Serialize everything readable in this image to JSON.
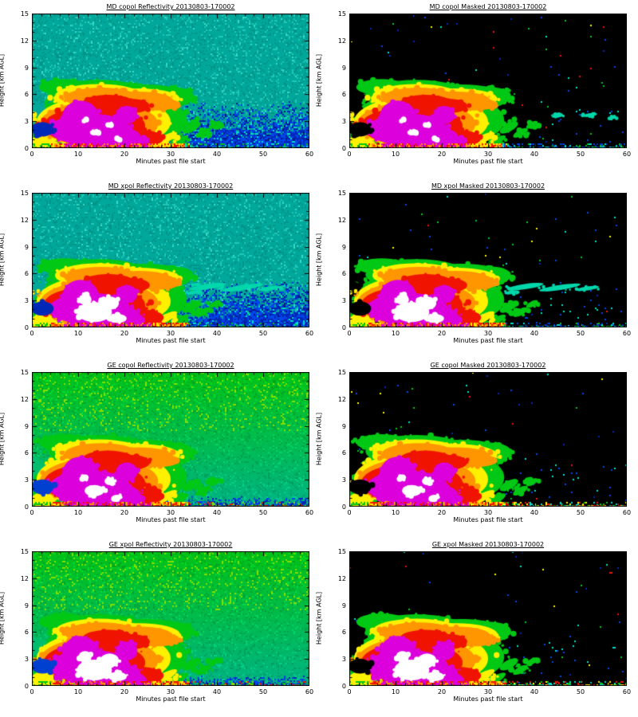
{
  "figure": {
    "grid": "4 rows x 2 columns",
    "xlabel": "Minutes past file start",
    "ylabel": "Height [km AGL]",
    "x_ticks": [
      "0",
      "10",
      "20",
      "30",
      "40",
      "50",
      "60"
    ],
    "y_ticks": [
      "0",
      "3",
      "6",
      "9",
      "12",
      "15"
    ],
    "x_range": [
      0,
      60
    ],
    "y_range": [
      0,
      15
    ]
  },
  "panels": [
    {
      "id": "md-copol-refl",
      "title": "MD copol Reflectivity 20130803-170002",
      "style": "refl",
      "radar": "MD",
      "white": 0.25,
      "seed": 101,
      "streaks": []
    },
    {
      "id": "md-copol-masked",
      "title": "MD copol Masked 20130803-170002",
      "style": "masked",
      "radar": "MD",
      "white": 0.25,
      "seed": 102,
      "streaks": [
        [
          45,
          3.6,
          1.3,
          0.2
        ],
        [
          52,
          3.7,
          1.6,
          0.2
        ],
        [
          57,
          3.4,
          0.9,
          0.16
        ]
      ]
    },
    {
      "id": "md-xpol-refl",
      "title": "MD xpol Reflectivity 20130803-170002",
      "style": "refl",
      "radar": "MD",
      "white": 1,
      "seed": 103,
      "streaks": [
        [
          38,
          4.55,
          4,
          0.3
        ],
        [
          45.5,
          4.45,
          4.5,
          0.28
        ],
        [
          51.5,
          4.35,
          2.5,
          0.22
        ],
        [
          35,
          3.9,
          1.5,
          0.2
        ]
      ]
    },
    {
      "id": "md-xpol-masked",
      "title": "MD xpol Masked 20130803-170002",
      "style": "masked",
      "radar": "MD",
      "white": 1,
      "seed": 104,
      "streaks": [
        [
          38,
          4.55,
          4,
          0.3
        ],
        [
          45.5,
          4.45,
          4.5,
          0.28
        ],
        [
          51.5,
          4.35,
          2.5,
          0.22
        ],
        [
          35,
          3.9,
          1.5,
          0.2
        ]
      ]
    },
    {
      "id": "ge-copol-refl",
      "title": "GE copol Reflectivity 20130803-170002",
      "style": "refl",
      "radar": "GE",
      "white": 0.55,
      "seed": 105,
      "streaks": []
    },
    {
      "id": "ge-copol-masked",
      "title": "GE copol Masked 20130803-170002",
      "style": "masked",
      "radar": "GE",
      "white": 0.55,
      "seed": 106,
      "streaks": []
    },
    {
      "id": "ge-xpol-refl",
      "title": "GE xpol Reflectivity 20130803-170002",
      "style": "refl",
      "radar": "GE",
      "white": 1,
      "seed": 107,
      "streaks": []
    },
    {
      "id": "ge-xpol-masked",
      "title": "GE xpol Masked 20130803-170002",
      "style": "masked",
      "radar": "GE",
      "white": 1,
      "seed": 108,
      "streaks": []
    }
  ],
  "palette": {
    "teal": "#00A89B",
    "teal_dark": "#00958A",
    "teal_light": "#1FC7B6",
    "blue": "#0046E8",
    "blue_deep": "#0028B8",
    "blue_darkest": "#001A86",
    "green_bg_top": "#00C818",
    "green_bg_bottom": "#00B98F",
    "yellow_green": "#86E000",
    "storm_green": "#00C814",
    "storm_yellow": "#FFF000",
    "storm_orange": "#FF9600",
    "storm_red": "#F01400",
    "storm_magenta": "#DC00DC",
    "storm_white": "#FFFFFF",
    "cyan": "#00E0C8",
    "black": "#000000"
  },
  "chart_data": [
    {
      "type": "heatmap",
      "title": "MD copol Reflectivity 20130803-170002",
      "xlabel": "Minutes past file start",
      "ylabel": "Height [km AGL]",
      "x_range": [
        0,
        60
      ],
      "y_range": [
        0,
        15
      ],
      "value_scale": "radar reflectivity, rainbow low-to-high: blue, teal/green, yellow, orange, red, magenta, white",
      "features": {
        "storm_time_min": [
          0,
          35
        ],
        "storm_top_km": 7.5,
        "core_time_min": [
          6,
          25
        ],
        "core_height_km": [
          0,
          5
        ],
        "anvil_time_min": [
          12,
          35
        ],
        "anvil_height_km": [
          4.5,
          6.5
        ],
        "background": "weak teal echo everywhere with clear-air blue wedge in lower right",
        "surface_clutter_km": [
          0,
          0.5
        ]
      }
    },
    {
      "type": "heatmap",
      "title": "MD copol Masked 20130803-170002",
      "xlabel": "Minutes past file start",
      "ylabel": "Height [km AGL]",
      "x_range": [
        0,
        60
      ],
      "y_range": [
        0,
        15
      ],
      "value_scale": "radar reflectivity, rainbow low-to-high: blue, teal/green, yellow, orange, red, magenta, white",
      "features": {
        "storm_time_min": [
          0,
          35
        ],
        "storm_top_km": 7.5,
        "core_time_min": [
          6,
          25
        ],
        "core_height_km": [
          0,
          5
        ],
        "anvil_time_min": [
          12,
          35
        ],
        "anvil_height_km": [
          4.5,
          6.5
        ],
        "background": "black (masked out) with sparse colored speckles; thin speckled clutter line below 0.5 km beyond ~35 min",
        "surface_clutter_km": [
          0,
          0.5
        ]
      }
    },
    {
      "type": "heatmap",
      "title": "MD xpol Reflectivity 20130803-170002",
      "xlabel": "Minutes past file start",
      "ylabel": "Height [km AGL]",
      "x_range": [
        0,
        60
      ],
      "y_range": [
        0,
        15
      ],
      "value_scale": "radar reflectivity, rainbow low-to-high: blue, teal/green, yellow, orange, red, magenta, white",
      "features": {
        "storm_time_min": [
          0,
          35
        ],
        "storm_top_km": 7.5,
        "core_time_min": [
          6,
          25
        ],
        "core_height_km": [
          0,
          5
        ],
        "white_saturation": "large white patches 10-20 min, 0.5-3.5 km",
        "mid_level_streaks": "cyan echo streaks near 4.5 km, 35-52 min",
        "background": "weak teal echo with clear-air blue wedge in lower right",
        "surface_clutter_km": [
          0,
          0.5
        ]
      }
    },
    {
      "type": "heatmap",
      "title": "MD xpol Masked 20130803-170002",
      "xlabel": "Minutes past file start",
      "ylabel": "Height [km AGL]",
      "x_range": [
        0,
        60
      ],
      "y_range": [
        0,
        15
      ],
      "value_scale": "radar reflectivity, rainbow low-to-high: blue, teal/green, yellow, orange, red, magenta, white",
      "features": {
        "storm_time_min": [
          0,
          35
        ],
        "storm_top_km": 7.5,
        "core_time_min": [
          6,
          25
        ],
        "core_height_km": [
          0,
          5
        ],
        "white_saturation": "large white patches 10-20 min, 0.5-3.5 km",
        "mid_level_streaks": "cyan echo streaks near 4.5 km, 35-52 min",
        "background": "black (masked out) with sparse speckles and clutter line beyond ~35 min",
        "surface_clutter_km": [
          0,
          0.5
        ]
      }
    },
    {
      "type": "heatmap",
      "title": "GE copol Reflectivity 20130803-170002",
      "xlabel": "Minutes past file start",
      "ylabel": "Height [km AGL]",
      "x_range": [
        0,
        60
      ],
      "y_range": [
        0,
        15
      ],
      "value_scale": "radar reflectivity, rainbow low-to-high: blue, teal/green, yellow, orange, red, magenta, white",
      "features": {
        "storm_time_min": [
          0,
          35
        ],
        "storm_top_km": 7.5,
        "core_time_min": [
          6,
          25
        ],
        "core_height_km": [
          0,
          5
        ],
        "background": "green weak echo grading to teal toward surface; blue band below ~1 km beyond 25 min",
        "surface_clutter_km": [
          0,
          0.5
        ]
      }
    },
    {
      "type": "heatmap",
      "title": "GE copol Masked 20130803-170002",
      "xlabel": "Minutes past file start",
      "ylabel": "Height [km AGL]",
      "x_range": [
        0,
        60
      ],
      "y_range": [
        0,
        15
      ],
      "value_scale": "radar reflectivity, rainbow low-to-high: blue, teal/green, yellow, orange, red, magenta, white",
      "features": {
        "storm_time_min": [
          0,
          35
        ],
        "storm_top_km": 7.5,
        "core_time_min": [
          6,
          25
        ],
        "core_height_km": [
          0,
          5
        ],
        "background": "black (masked out); green/red speckled clutter line below 0.5 km beyond ~33 min",
        "surface_clutter_km": [
          0,
          0.5
        ]
      }
    },
    {
      "type": "heatmap",
      "title": "GE xpol Reflectivity 20130803-170002",
      "xlabel": "Minutes past file start",
      "ylabel": "Height [km AGL]",
      "x_range": [
        0,
        60
      ],
      "y_range": [
        0,
        15
      ],
      "value_scale": "radar reflectivity, rainbow low-to-high: blue, teal/green, yellow, orange, red, magenta, white",
      "features": {
        "storm_time_min": [
          0,
          35
        ],
        "storm_top_km": 7.5,
        "core_time_min": [
          6,
          25
        ],
        "core_height_km": [
          0,
          5
        ],
        "white_saturation": "large white patches 10-20 min, 0.5-3.5 km",
        "background": "green weak echo grading to teal toward surface; blue band below ~1 km beyond 25 min",
        "surface_clutter_km": [
          0,
          0.5
        ]
      }
    },
    {
      "type": "heatmap",
      "title": "GE xpol Masked 20130803-170002",
      "xlabel": "Minutes past file start",
      "ylabel": "Height [km AGL]",
      "x_range": [
        0,
        60
      ],
      "y_range": [
        0,
        15
      ],
      "value_scale": "radar reflectivity, rainbow low-to-high: blue, teal/green, yellow, orange, red, magenta, white",
      "features": {
        "storm_time_min": [
          0,
          35
        ],
        "storm_top_km": 7.5,
        "core_time_min": [
          6,
          25
        ],
        "core_height_km": [
          0,
          5
        ],
        "white_saturation": "large white patches 10-20 min, 0.5-3.5 km",
        "background": "black (masked out); green/red speckled clutter line below 0.5 km beyond ~33 min",
        "surface_clutter_km": [
          0,
          0.5
        ]
      }
    }
  ]
}
